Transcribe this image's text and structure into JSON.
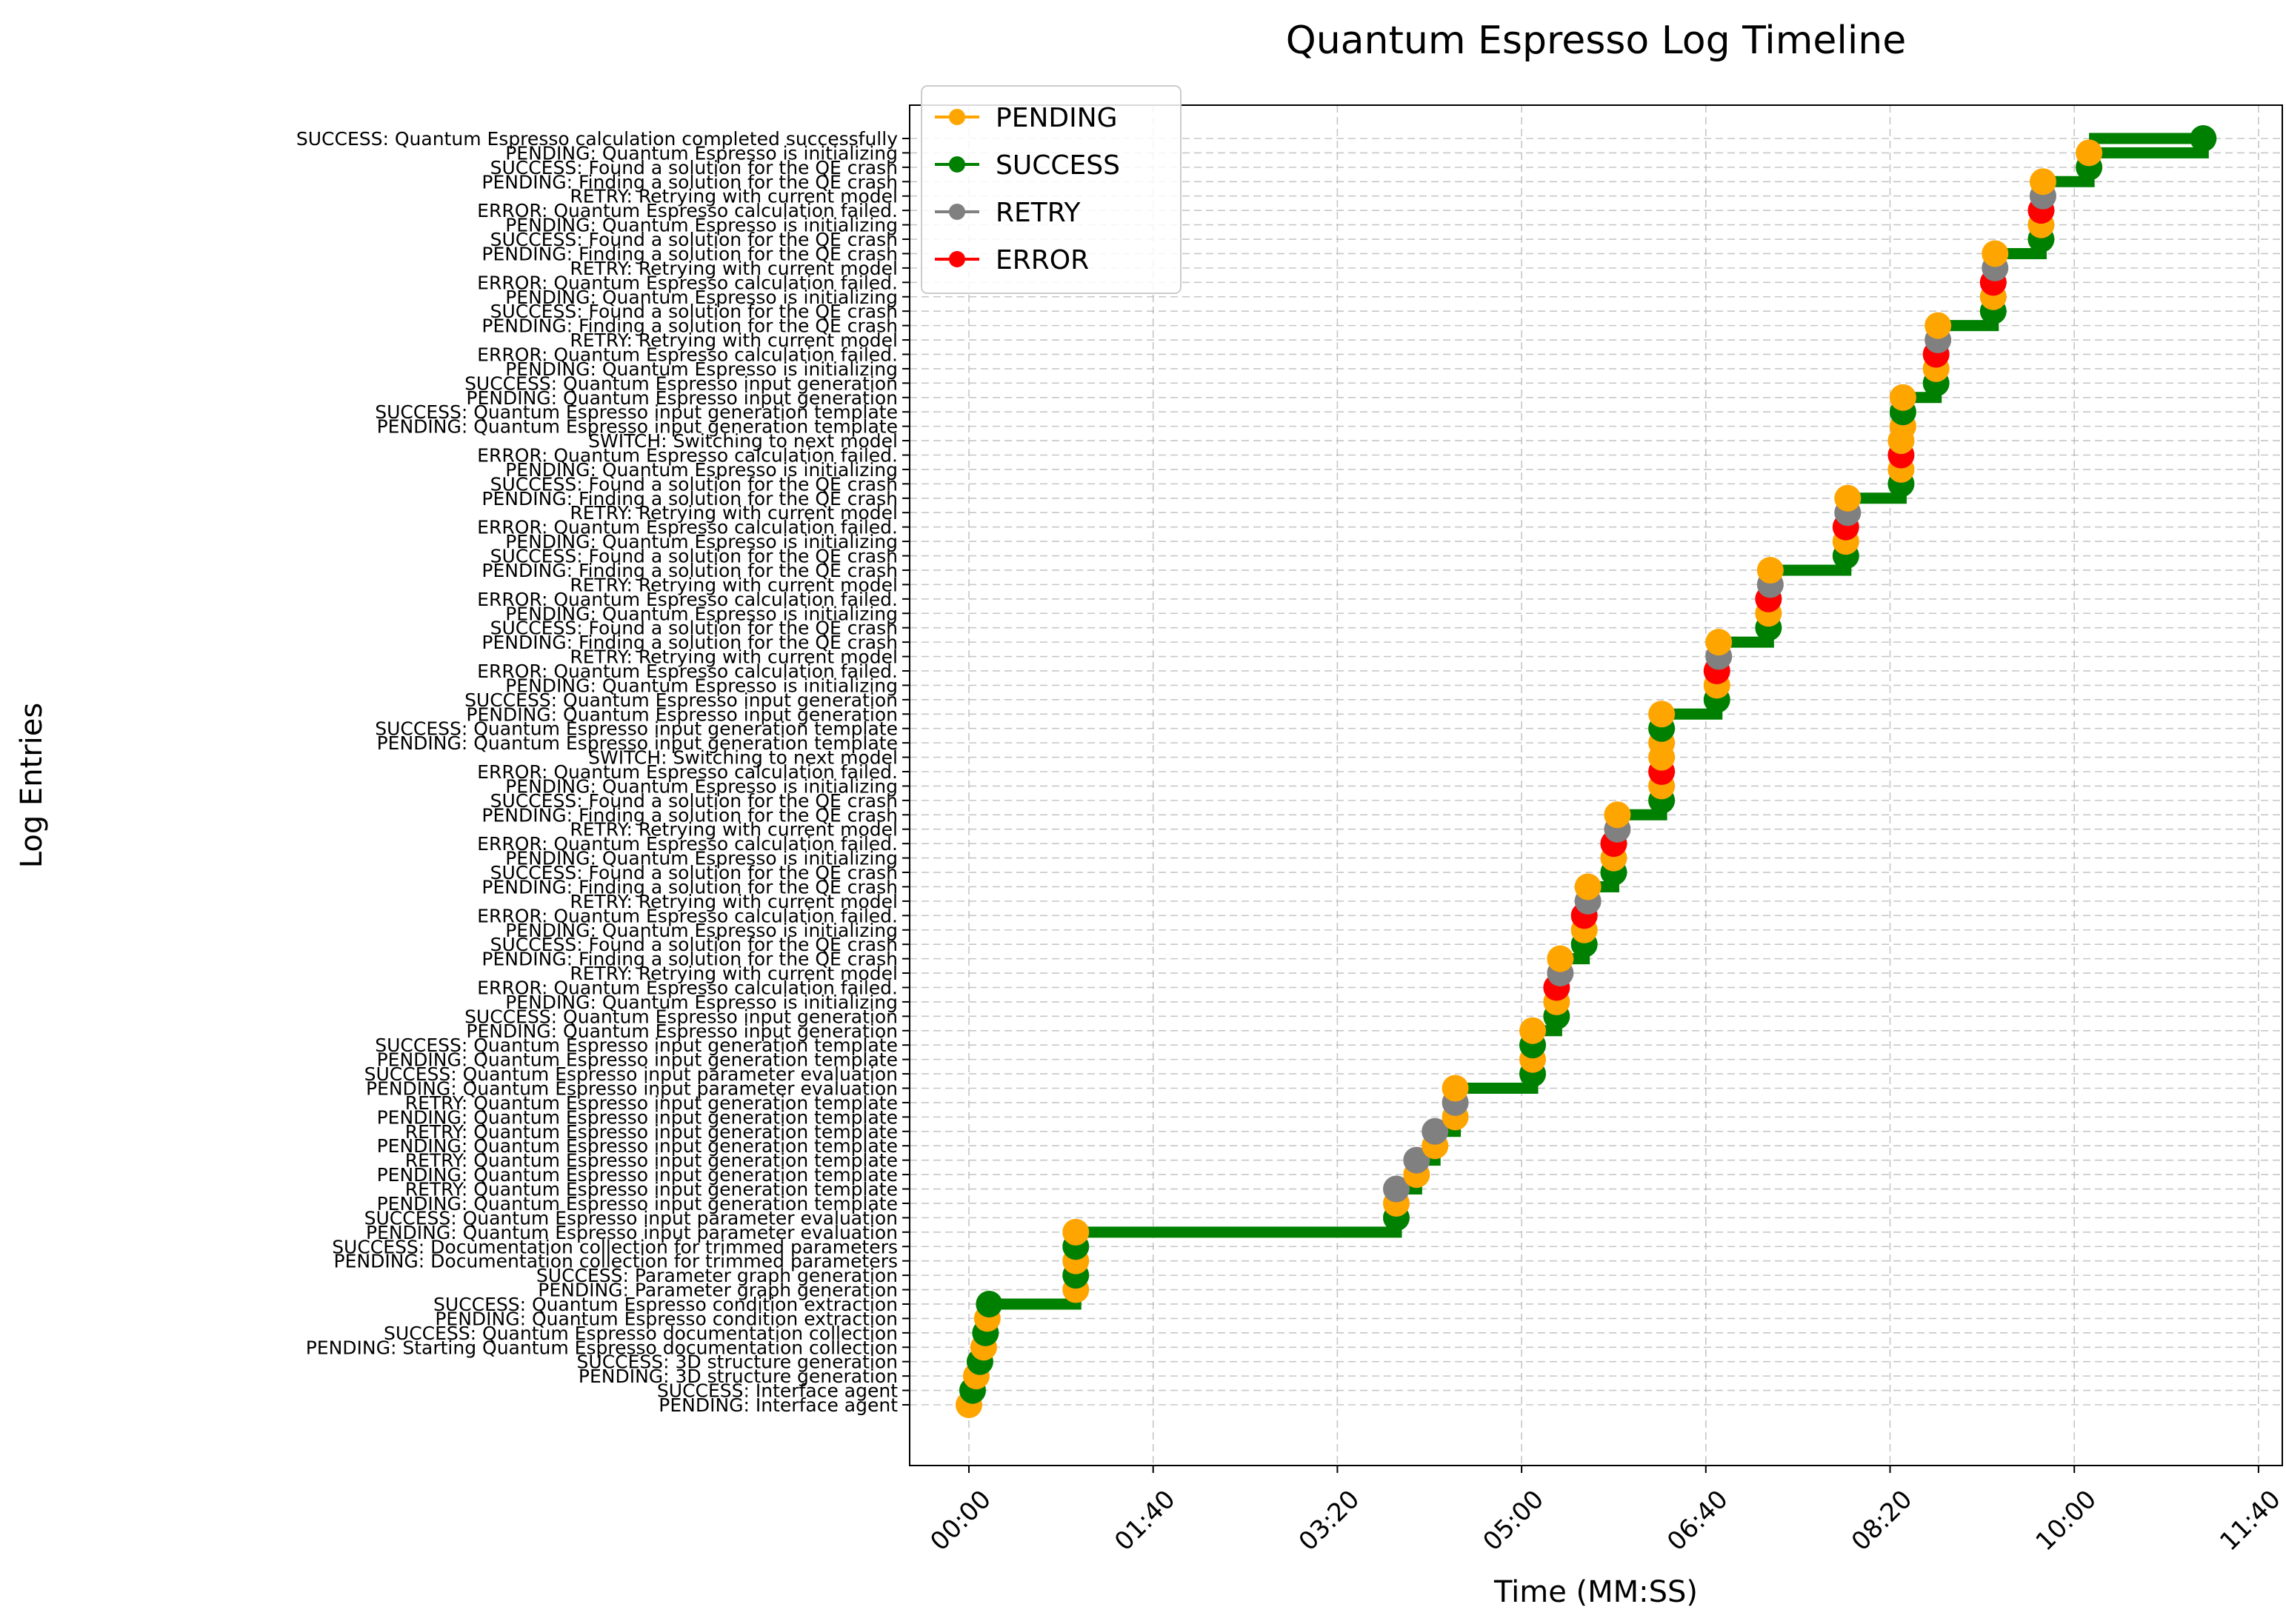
{
  "chart_data": {
    "type": "line",
    "title": "Quantum Espresso Log Timeline",
    "xlabel": "Time (MM:SS)",
    "ylabel": "Log Entries",
    "x_unit": "seconds",
    "xlim": [
      -60,
      705
    ],
    "x_ticks": [
      0,
      100,
      200,
      300,
      400,
      500,
      600,
      700
    ],
    "x_tick_labels": [
      "00:00",
      "01:40",
      "03:20",
      "05:00",
      "06:40",
      "08:20",
      "10:00",
      "11:40"
    ],
    "grid": true,
    "legend_position": "top-left",
    "colors": {
      "PENDING": "#FFA500",
      "SUCCESS": "#008000",
      "RETRY": "#808080",
      "ERROR": "#FF0000",
      "SWITCH": "#FFA500",
      "connector": "#008000"
    },
    "legend": [
      "PENDING",
      "SUCCESS",
      "RETRY",
      "ERROR"
    ],
    "entries": [
      {
        "label": "PENDING: Interface agent",
        "status": "PENDING",
        "t": 0
      },
      {
        "label": "SUCCESS: Interface agent",
        "status": "SUCCESS",
        "t": 2
      },
      {
        "label": "PENDING: 3D structure generation",
        "status": "PENDING",
        "t": 4
      },
      {
        "label": "SUCCESS: 3D structure generation",
        "status": "SUCCESS",
        "t": 6
      },
      {
        "label": "PENDING: Starting Quantum Espresso documentation collection",
        "status": "PENDING",
        "t": 8
      },
      {
        "label": "SUCCESS: Quantum Espresso documentation collection",
        "status": "SUCCESS",
        "t": 9
      },
      {
        "label": "PENDING: Quantum Espresso condition extraction",
        "status": "PENDING",
        "t": 10
      },
      {
        "label": "SUCCESS: Quantum Espresso condition extraction",
        "status": "SUCCESS",
        "t": 11
      },
      {
        "label": "PENDING: Parameter graph generation",
        "status": "PENDING",
        "t": 58
      },
      {
        "label": "SUCCESS: Parameter graph generation",
        "status": "SUCCESS",
        "t": 58
      },
      {
        "label": "PENDING: Documentation collection for trimmed parameters",
        "status": "PENDING",
        "t": 58
      },
      {
        "label": "SUCCESS: Documentation collection for trimmed parameters",
        "status": "SUCCESS",
        "t": 58
      },
      {
        "label": "PENDING: Quantum Espresso input parameter evaluation",
        "status": "PENDING",
        "t": 58
      },
      {
        "label": "SUCCESS: Quantum Espresso input parameter evaluation",
        "status": "SUCCESS",
        "t": 232
      },
      {
        "label": "PENDING: Quantum Espresso input generation template",
        "status": "PENDING",
        "t": 232
      },
      {
        "label": "RETRY: Quantum Espresso input generation template",
        "status": "RETRY",
        "t": 232
      },
      {
        "label": "PENDING: Quantum Espresso input generation template",
        "status": "PENDING",
        "t": 243
      },
      {
        "label": "RETRY: Quantum Espresso input generation template",
        "status": "RETRY",
        "t": 243
      },
      {
        "label": "PENDING: Quantum Espresso input generation template",
        "status": "PENDING",
        "t": 253
      },
      {
        "label": "RETRY: Quantum Espresso input generation template",
        "status": "RETRY",
        "t": 253
      },
      {
        "label": "PENDING: Quantum Espresso input generation template",
        "status": "PENDING",
        "t": 264
      },
      {
        "label": "RETRY: Quantum Espresso input generation template",
        "status": "RETRY",
        "t": 264
      },
      {
        "label": "PENDING: Quantum Espresso input parameter evaluation",
        "status": "PENDING",
        "t": 264
      },
      {
        "label": "SUCCESS: Quantum Espresso input parameter evaluation",
        "status": "SUCCESS",
        "t": 306
      },
      {
        "label": "PENDING: Quantum Espresso input generation template",
        "status": "PENDING",
        "t": 306
      },
      {
        "label": "SUCCESS: Quantum Espresso input generation template",
        "status": "SUCCESS",
        "t": 306
      },
      {
        "label": "PENDING: Quantum Espresso input generation",
        "status": "PENDING",
        "t": 306
      },
      {
        "label": "SUCCESS: Quantum Espresso input generation",
        "status": "SUCCESS",
        "t": 319
      },
      {
        "label": "PENDING: Quantum Espresso is initializing",
        "status": "PENDING",
        "t": 319
      },
      {
        "label": "ERROR: Quantum Espresso calculation failed.",
        "status": "ERROR",
        "t": 319
      },
      {
        "label": "RETRY: Retrying with current model",
        "status": "RETRY",
        "t": 321
      },
      {
        "label": "PENDING: Finding a solution for the QE crash",
        "status": "PENDING",
        "t": 321
      },
      {
        "label": "SUCCESS: Found a solution for the QE crash",
        "status": "SUCCESS",
        "t": 334
      },
      {
        "label": "PENDING: Quantum Espresso is initializing",
        "status": "PENDING",
        "t": 334
      },
      {
        "label": "ERROR: Quantum Espresso calculation failed.",
        "status": "ERROR",
        "t": 334
      },
      {
        "label": "RETRY: Retrying with current model",
        "status": "RETRY",
        "t": 336
      },
      {
        "label": "PENDING: Finding a solution for the QE crash",
        "status": "PENDING",
        "t": 336
      },
      {
        "label": "SUCCESS: Found a solution for the QE crash",
        "status": "SUCCESS",
        "t": 350
      },
      {
        "label": "PENDING: Quantum Espresso is initializing",
        "status": "PENDING",
        "t": 350
      },
      {
        "label": "ERROR: Quantum Espresso calculation failed.",
        "status": "ERROR",
        "t": 350
      },
      {
        "label": "RETRY: Retrying with current model",
        "status": "RETRY",
        "t": 352
      },
      {
        "label": "PENDING: Finding a solution for the QE crash",
        "status": "PENDING",
        "t": 352
      },
      {
        "label": "SUCCESS: Found a solution for the QE crash",
        "status": "SUCCESS",
        "t": 376
      },
      {
        "label": "PENDING: Quantum Espresso is initializing",
        "status": "PENDING",
        "t": 376
      },
      {
        "label": "ERROR: Quantum Espresso calculation failed.",
        "status": "ERROR",
        "t": 376
      },
      {
        "label": "SWITCH: Switching to next model",
        "status": "SWITCH",
        "t": 376
      },
      {
        "label": "PENDING: Quantum Espresso input generation template",
        "status": "PENDING",
        "t": 376
      },
      {
        "label": "SUCCESS: Quantum Espresso input generation template",
        "status": "SUCCESS",
        "t": 376
      },
      {
        "label": "PENDING: Quantum Espresso input generation",
        "status": "PENDING",
        "t": 376
      },
      {
        "label": "SUCCESS: Quantum Espresso input generation",
        "status": "SUCCESS",
        "t": 406
      },
      {
        "label": "PENDING: Quantum Espresso is initializing",
        "status": "PENDING",
        "t": 406
      },
      {
        "label": "ERROR: Quantum Espresso calculation failed.",
        "status": "ERROR",
        "t": 406
      },
      {
        "label": "RETRY: Retrying with current model",
        "status": "RETRY",
        "t": 407
      },
      {
        "label": "PENDING: Finding a solution for the QE crash",
        "status": "PENDING",
        "t": 407
      },
      {
        "label": "SUCCESS: Found a solution for the QE crash",
        "status": "SUCCESS",
        "t": 434
      },
      {
        "label": "PENDING: Quantum Espresso is initializing",
        "status": "PENDING",
        "t": 434
      },
      {
        "label": "ERROR: Quantum Espresso calculation failed.",
        "status": "ERROR",
        "t": 434
      },
      {
        "label": "RETRY: Retrying with current model",
        "status": "RETRY",
        "t": 435
      },
      {
        "label": "PENDING: Finding a solution for the QE crash",
        "status": "PENDING",
        "t": 435
      },
      {
        "label": "SUCCESS: Found a solution for the QE crash",
        "status": "SUCCESS",
        "t": 476
      },
      {
        "label": "PENDING: Quantum Espresso is initializing",
        "status": "PENDING",
        "t": 476
      },
      {
        "label": "ERROR: Quantum Espresso calculation failed.",
        "status": "ERROR",
        "t": 476
      },
      {
        "label": "RETRY: Retrying with current model",
        "status": "RETRY",
        "t": 477
      },
      {
        "label": "PENDING: Finding a solution for the QE crash",
        "status": "PENDING",
        "t": 477
      },
      {
        "label": "SUCCESS: Found a solution for the QE crash",
        "status": "SUCCESS",
        "t": 506
      },
      {
        "label": "PENDING: Quantum Espresso is initializing",
        "status": "PENDING",
        "t": 506
      },
      {
        "label": "ERROR: Quantum Espresso calculation failed.",
        "status": "ERROR",
        "t": 506
      },
      {
        "label": "SWITCH: Switching to next model",
        "status": "SWITCH",
        "t": 506
      },
      {
        "label": "PENDING: Quantum Espresso input generation template",
        "status": "PENDING",
        "t": 507
      },
      {
        "label": "SUCCESS: Quantum Espresso input generation template",
        "status": "SUCCESS",
        "t": 507
      },
      {
        "label": "PENDING: Quantum Espresso input generation",
        "status": "PENDING",
        "t": 507
      },
      {
        "label": "SUCCESS: Quantum Espresso input generation",
        "status": "SUCCESS",
        "t": 525
      },
      {
        "label": "PENDING: Quantum Espresso is initializing",
        "status": "PENDING",
        "t": 525
      },
      {
        "label": "ERROR: Quantum Espresso calculation failed.",
        "status": "ERROR",
        "t": 525
      },
      {
        "label": "RETRY: Retrying with current model",
        "status": "RETRY",
        "t": 526
      },
      {
        "label": "PENDING: Finding a solution for the QE crash",
        "status": "PENDING",
        "t": 526
      },
      {
        "label": "SUCCESS: Found a solution for the QE crash",
        "status": "SUCCESS",
        "t": 556
      },
      {
        "label": "PENDING: Quantum Espresso is initializing",
        "status": "PENDING",
        "t": 556
      },
      {
        "label": "ERROR: Quantum Espresso calculation failed.",
        "status": "ERROR",
        "t": 556
      },
      {
        "label": "RETRY: Retrying with current model",
        "status": "RETRY",
        "t": 557
      },
      {
        "label": "PENDING: Finding a solution for the QE crash",
        "status": "PENDING",
        "t": 557
      },
      {
        "label": "SUCCESS: Found a solution for the QE crash",
        "status": "SUCCESS",
        "t": 582
      },
      {
        "label": "PENDING: Quantum Espresso is initializing",
        "status": "PENDING",
        "t": 582
      },
      {
        "label": "ERROR: Quantum Espresso calculation failed.",
        "status": "ERROR",
        "t": 582
      },
      {
        "label": "RETRY: Retrying with current model",
        "status": "RETRY",
        "t": 583
      },
      {
        "label": "PENDING: Finding a solution for the QE crash",
        "status": "PENDING",
        "t": 583
      },
      {
        "label": "SUCCESS: Found a solution for the QE crash",
        "status": "SUCCESS",
        "t": 608
      },
      {
        "label": "PENDING: Quantum Espresso is initializing",
        "status": "PENDING",
        "t": 608
      },
      {
        "label": "SUCCESS: Quantum Espresso calculation completed successfully",
        "status": "SUCCESS",
        "t": 670
      }
    ]
  }
}
